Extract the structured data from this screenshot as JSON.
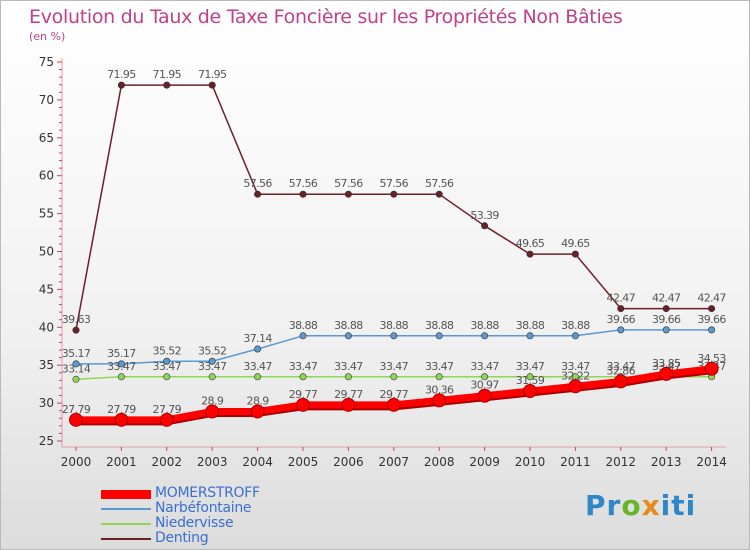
{
  "title": "Evolution du Taux de Taxe Foncière sur les Propriétés Non Bâties",
  "unit_label": "(en %)",
  "logo": {
    "p": "Pr",
    "o": "o",
    "x": "x",
    "i": "iti"
  },
  "chart_data": {
    "type": "line",
    "title": "Evolution du Taux de Taxe Foncière sur les Propriétés Non Bâties",
    "ylabel": "(en %)",
    "xlabel": "",
    "ylim": [
      25,
      75
    ],
    "yticks": [
      25,
      30,
      35,
      40,
      45,
      50,
      55,
      60,
      65,
      70,
      75
    ],
    "categories": [
      "2000",
      "2001",
      "2002",
      "2003",
      "2004",
      "2005",
      "2006",
      "2007",
      "2008",
      "2009",
      "2010",
      "2011",
      "2012",
      "2013",
      "2014"
    ],
    "series": [
      {
        "name": "Denting",
        "color": "#6b1f26",
        "values": [
          39.63,
          71.95,
          71.95,
          71.95,
          57.56,
          57.56,
          57.56,
          57.56,
          57.56,
          53.39,
          49.65,
          49.65,
          42.47,
          42.47,
          42.47
        ]
      },
      {
        "name": "Narbéfontaine",
        "color": "#5b9ad0",
        "values": [
          35.17,
          35.17,
          35.52,
          35.52,
          37.14,
          38.88,
          38.88,
          38.88,
          38.88,
          38.88,
          38.88,
          38.88,
          39.66,
          39.66,
          39.66
        ]
      },
      {
        "name": "Niedervisse",
        "color": "#8fd657",
        "values": [
          33.14,
          33.47,
          33.47,
          33.47,
          33.47,
          33.47,
          33.47,
          33.47,
          33.47,
          33.47,
          33.47,
          33.47,
          33.47,
          33.47,
          33.47
        ]
      },
      {
        "name": "MOMERSTROFF",
        "color": "#ff0000",
        "values": [
          27.79,
          27.79,
          27.79,
          28.9,
          28.9,
          29.77,
          29.77,
          29.77,
          30.36,
          30.97,
          31.59,
          32.22,
          32.86,
          33.85,
          34.53
        ]
      }
    ],
    "legend": [
      "MOMERSTROFF",
      "Narbéfontaine",
      "Niedervisse",
      "Denting"
    ],
    "legend_position": "bottom-left",
    "grid": false
  }
}
